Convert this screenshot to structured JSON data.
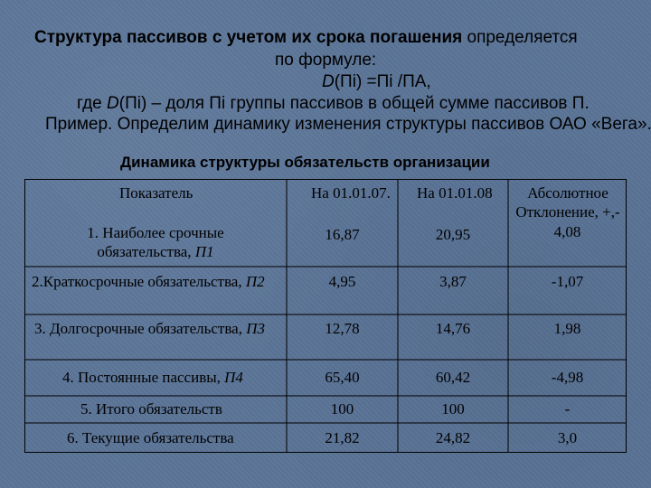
{
  "intro": {
    "line1_bold": "Структура пассивов с учетом их срока погашения",
    "line1_rest": " определяется",
    "line2": "по формуле:",
    "formula_D": "D",
    "formula_rest": "(Пi) =Пi /ПА,",
    "line4_a": "где ",
    "line4_D": "D",
    "line4_b": "(Пi) – доля  Пi  группы пассивов в общей сумме пассивов П.",
    "line5": "Пример. Определим динамику изменения структуры пассивов ОАО «Вега»."
  },
  "table": {
    "caption": "Динамика структуры обязательств организации",
    "headers": {
      "indicator": "Показатель",
      "date1": "На 01.01.07.",
      "date2": "На 01.01.08",
      "abs_line1": "Абсолютное",
      "abs_line2": "Отклонение, +,-"
    },
    "rows": [
      {
        "name_line1": "1. Наиболее срочные",
        "name_line2a": "обязательства, ",
        "name_sub": "П1",
        "v1": "16,87",
        "v2": "20,95",
        "dev": "4,08"
      },
      {
        "name": "2.Краткосрочные обязательства, ",
        "name_sub": "П2",
        "v1": "4,95",
        "v2": "3,87",
        "dev": "-1,07"
      },
      {
        "name": "3. Долгосрочные обязательства, ",
        "name_sub": "П3",
        "v1": "12,78",
        "v2": "14,76",
        "dev": "1,98"
      },
      {
        "name": "4. Постоянные пассивы, ",
        "name_sub": "П4",
        "v1": "65,40",
        "v2": "60,42",
        "dev": "-4,98"
      },
      {
        "name": "5. Итого обязательств",
        "v1": "100",
        "v2": "100",
        "dev": "-"
      },
      {
        "name": "6.  Текущие обязательства",
        "v1": "21,82",
        "v2": "24,82",
        "dev": "3,0"
      }
    ]
  }
}
